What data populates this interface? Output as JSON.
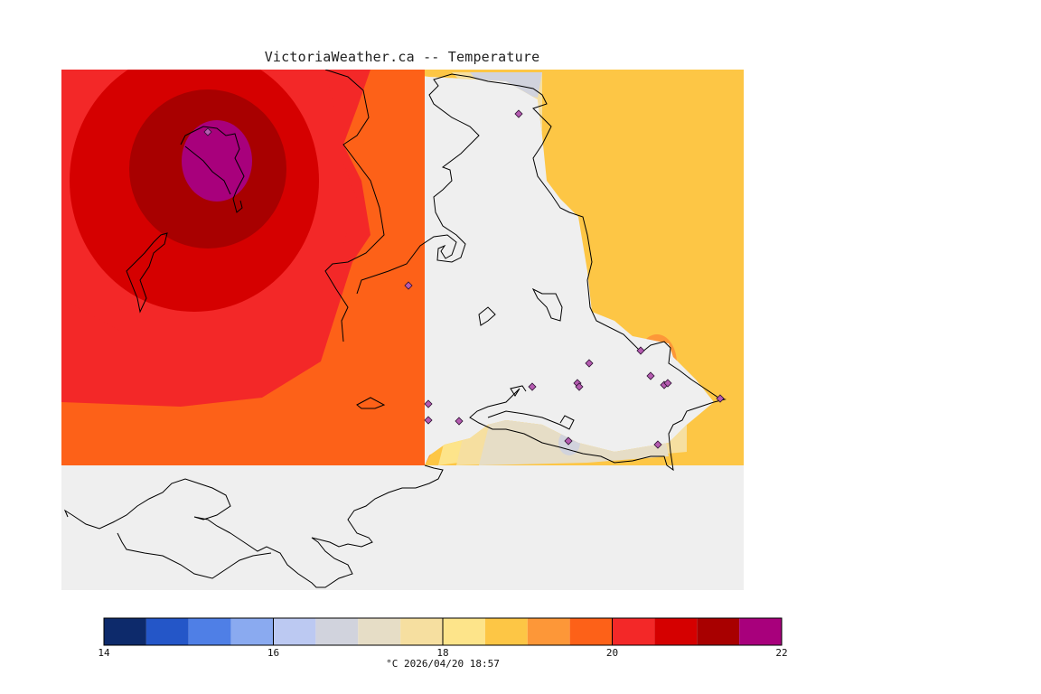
{
  "title": "VictoriaWeather.ca -- Temperature",
  "map": {
    "background_color": "#efefef",
    "land_outline_color": "#000000",
    "layer": "temperature"
  },
  "legend": {
    "min": 14,
    "max": 22,
    "step": 0.5,
    "tick_labels": [
      "14",
      "16",
      "18",
      "20",
      "22"
    ],
    "colors": [
      "#0d2a6b",
      "#2456c8",
      "#4f7fe6",
      "#8aaaf0",
      "#bcc9f2",
      "#d1d3dd",
      "#e6ddc6",
      "#f6dfa0",
      "#fde48a",
      "#fdc645",
      "#fd9738",
      "#fd6118",
      "#f32828",
      "#d50000",
      "#a80000",
      "#a8007c"
    ],
    "caption": "°C  2026/04/20 18:57"
  },
  "stations": {
    "marker_color": "#b55bb0",
    "count": 17
  }
}
